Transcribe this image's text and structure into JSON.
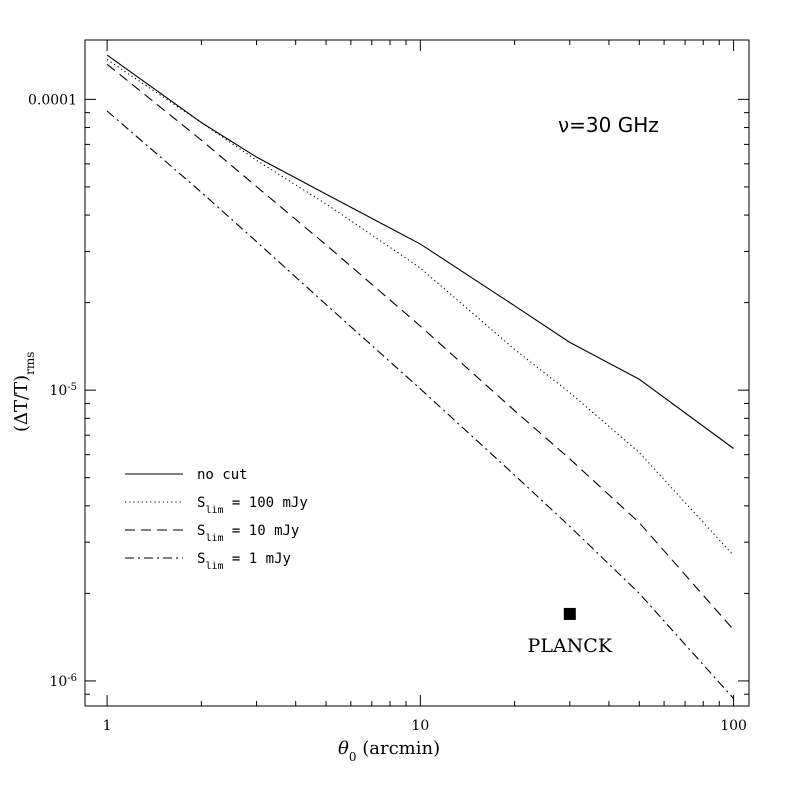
{
  "chart_data": {
    "type": "line",
    "xlabel": {
      "symbol": "θ",
      "sub": "0",
      "rest": " (arcmin)"
    },
    "ylabel": {
      "main": "(ΔT/T)",
      "sub": "rms"
    },
    "xscale": "log",
    "yscale": "log",
    "xlim": [
      0.85,
      112
    ],
    "ylim": [
      8.2e-07,
      0.00016
    ],
    "x_ticks": [
      {
        "value": 1,
        "label": "1"
      },
      {
        "value": 10,
        "label": "10"
      },
      {
        "value": 100,
        "label": "100"
      }
    ],
    "y_ticks": [
      {
        "value": 0.0001,
        "label": "0.0001"
      },
      {
        "value": 1e-05,
        "label": "10",
        "exp": "-5"
      },
      {
        "value": 1e-06,
        "label": "10",
        "exp": "-6"
      }
    ],
    "annotation": {
      "text": "ν=30  GHz"
    },
    "legend_position": "left-middle",
    "series": [
      {
        "name": "no cut",
        "name_sub": "",
        "style": "solid",
        "x": [
          1,
          2,
          3,
          5,
          10,
          20,
          30,
          50,
          100
        ],
        "y": [
          0.000142,
          8.32e-05,
          6.33e-05,
          4.72e-05,
          3.18e-05,
          1.95e-05,
          1.46e-05,
          1.09e-05,
          6.3e-06
        ]
      },
      {
        "name": "S",
        "name_sub": "lim",
        "name_rest": " = 100 mJy",
        "style": "dotted",
        "x": [
          1,
          2,
          3,
          5,
          10,
          20,
          30,
          50,
          100
        ],
        "y": [
          0.000137,
          8.32e-05,
          6.17e-05,
          4.37e-05,
          2.63e-05,
          1.38e-05,
          9.8e-06,
          6.1e-06,
          2.7e-06
        ]
      },
      {
        "name": "S",
        "name_sub": "lim",
        "name_rest": " = 10 mJy",
        "style": "dashed",
        "x": [
          1,
          2,
          3,
          5,
          10,
          20,
          30,
          50,
          100
        ],
        "y": [
          0.000132,
          7.24e-05,
          5.01e-05,
          3.16e-05,
          1.66e-05,
          8.5e-06,
          5.8e-06,
          3.5e-06,
          1.5e-06
        ]
      },
      {
        "name": "S",
        "name_sub": "lim",
        "name_rest": " = 1 mJy",
        "style": "dashdot",
        "x": [
          1,
          2,
          3,
          5,
          10,
          20,
          30,
          50,
          100
        ],
        "y": [
          9.12e-05,
          4.79e-05,
          3.24e-05,
          1.97e-05,
          1.01e-05,
          5.1e-06,
          3.4e-06,
          2e-06,
          8.7e-07
        ]
      }
    ],
    "points": [
      {
        "name": "PLANCK",
        "x": 30,
        "y": 1.7e-06
      }
    ]
  }
}
